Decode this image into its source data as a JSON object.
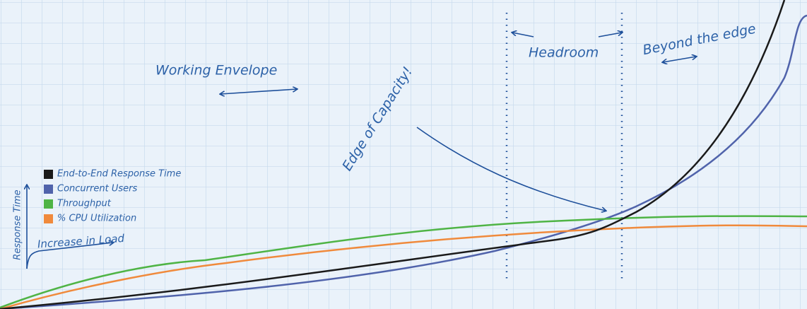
{
  "legend": [
    {
      "label": "End-to-End Response Time",
      "color": "#1a1a1a"
    },
    {
      "label": "Concurrent Users",
      "color": "#5063ab"
    },
    {
      "label": "Throughput",
      "color": "#4fb445"
    },
    {
      "label": "% CPU Utilization",
      "color": "#f08a3c"
    }
  ],
  "annotations": {
    "working_envelope": "Working Envelope",
    "headroom": "Headroom",
    "beyond": "Beyond the edge",
    "edge": "Edge of Capacity!"
  },
  "axes": {
    "y": "Response Time",
    "x": "Increase in Load"
  }
}
